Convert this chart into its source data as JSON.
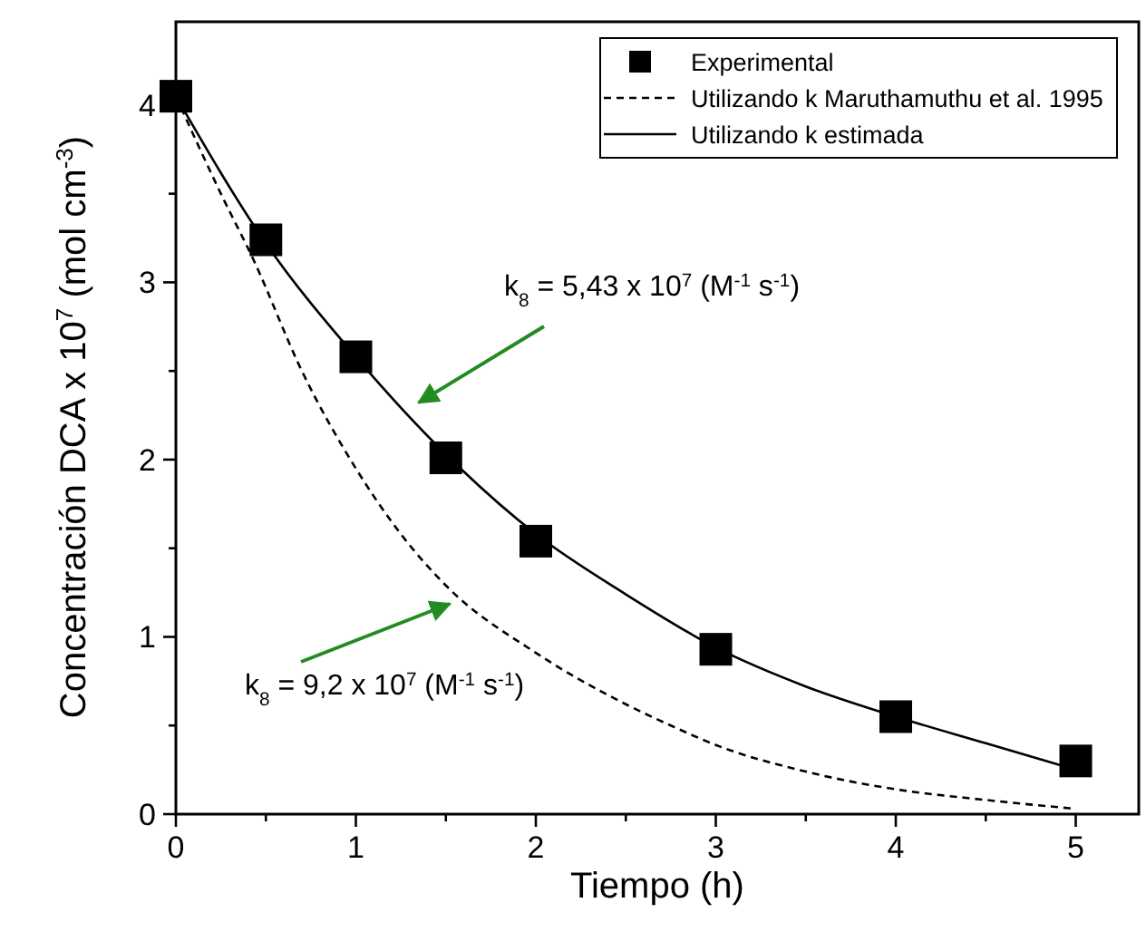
{
  "chart_data": {
    "type": "line",
    "xlabel": "Tiempo (h)",
    "ylabel": "Concentración DCA  x 10$^{7}$ (mol cm$^{-3}$)",
    "xlim": [
      0,
      5.35
    ],
    "ylim": [
      0,
      4.47
    ],
    "xticks": [
      0,
      {
        "value": 0.5,
        "label": null
      },
      1,
      {
        "value": 1.5,
        "label": null
      },
      2,
      {
        "value": 2.5,
        "label": null
      },
      3,
      {
        "value": 3.5,
        "label": null
      },
      4,
      {
        "value": 4.5,
        "label": null
      },
      5
    ],
    "yticks": [
      0,
      {
        "value": 0.5,
        "label": null
      },
      1,
      {
        "value": 1.5,
        "label": null
      },
      2,
      {
        "value": 2.5,
        "label": null
      },
      3,
      {
        "value": 3.5,
        "label": null
      },
      4
    ],
    "legend": "top right",
    "grid": false,
    "series": [
      {
        "name": "Experimental",
        "type": "scatter",
        "marker": "square",
        "color": "#000000",
        "x": [
          0,
          0.5,
          1,
          1.5,
          2,
          3,
          4,
          5
        ],
        "values": [
          4.05,
          3.24,
          2.58,
          2.01,
          1.54,
          0.93,
          0.55,
          0.3
        ]
      },
      {
        "name": "Utilizando k Maruthamuthu et al. 1995",
        "type": "line",
        "line_style": "dashed",
        "color": "#000000",
        "x": [
          0,
          0.25,
          0.43,
          0.7,
          1,
          1.25,
          1.5,
          2,
          2.5,
          2.75,
          3,
          3.5,
          4,
          4.5,
          5
        ],
        "values": [
          4.05,
          3.5,
          3.13,
          2.5,
          1.95,
          1.58,
          1.29,
          0.91,
          0.62,
          0.5,
          0.39,
          0.24,
          0.14,
          0.08,
          0.03
        ]
      },
      {
        "name": "Utilizando k estimada",
        "type": "line",
        "line_style": "solid",
        "color": "#000000",
        "x": [
          0,
          0.5,
          1,
          1.5,
          2,
          2.5,
          3,
          3.5,
          4,
          4.5,
          5
        ],
        "values": [
          4.05,
          3.22,
          2.58,
          2.03,
          1.58,
          1.24,
          0.94,
          0.72,
          0.55,
          0.4,
          0.25
        ]
      }
    ],
    "annotations": [
      "k$_{8}$ = 5,43 x 10$^{7}$ (M$^{-1}$ s$^{-1}$)",
      "k$_{8}$ = 9,2 x 10$^{7}$ (M$^{-1}$ s$^{-1}$)"
    ]
  }
}
